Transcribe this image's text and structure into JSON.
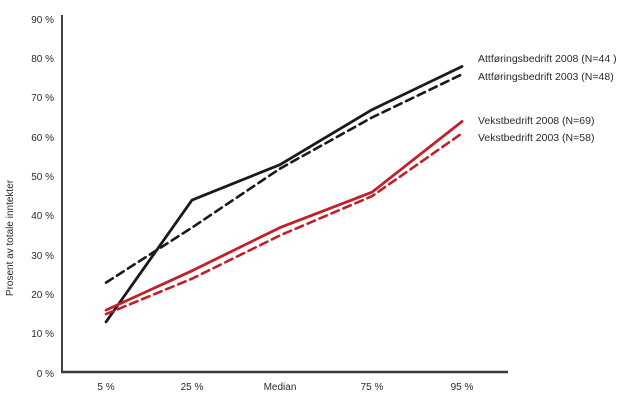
{
  "chart_data": {
    "type": "line",
    "title": "",
    "xlabel": "",
    "ylabel": "Prosent av totale inntekter",
    "categories": [
      "5 %",
      "25 %",
      "Median",
      "75 %",
      "95 %"
    ],
    "y_tick_labels": [
      "90 %",
      "80 %",
      "70 %",
      "60 %",
      "50 %",
      "40 %",
      "30 %",
      "20 %",
      "10 %",
      "0 %"
    ],
    "ylim": [
      0,
      90
    ],
    "grid": false,
    "legend_position": "right-of-line-ends",
    "colors": {
      "attforingsbedrift": "#1a1a1a",
      "vekstbedrift": "#c1202a",
      "axis": "#404040",
      "text": "#2b2b2b"
    },
    "series": [
      {
        "name": "Attføringsbedrift 2008 (N=44 )",
        "group": "attforingsbedrift",
        "color": "#1a1a1a",
        "style": "solid",
        "values": [
          13,
          44,
          53,
          67,
          78
        ]
      },
      {
        "name": "Attføringsbedrift 2003 (N=48)",
        "group": "attforingsbedrift",
        "color": "#1a1a1a",
        "style": "dashed",
        "values": [
          23,
          37,
          52,
          65,
          76
        ]
      },
      {
        "name": "Vekstbedrift 2008 (N=69)",
        "group": "vekstbedrift",
        "color": "#c1202a",
        "style": "solid",
        "values": [
          16,
          26,
          37,
          46,
          64
        ]
      },
      {
        "name": "Vekstbedrift 2003 (N=58)",
        "group": "vekstbedrift",
        "color": "#c1202a",
        "style": "dashed",
        "values": [
          15,
          24,
          35,
          45,
          61
        ]
      }
    ]
  }
}
